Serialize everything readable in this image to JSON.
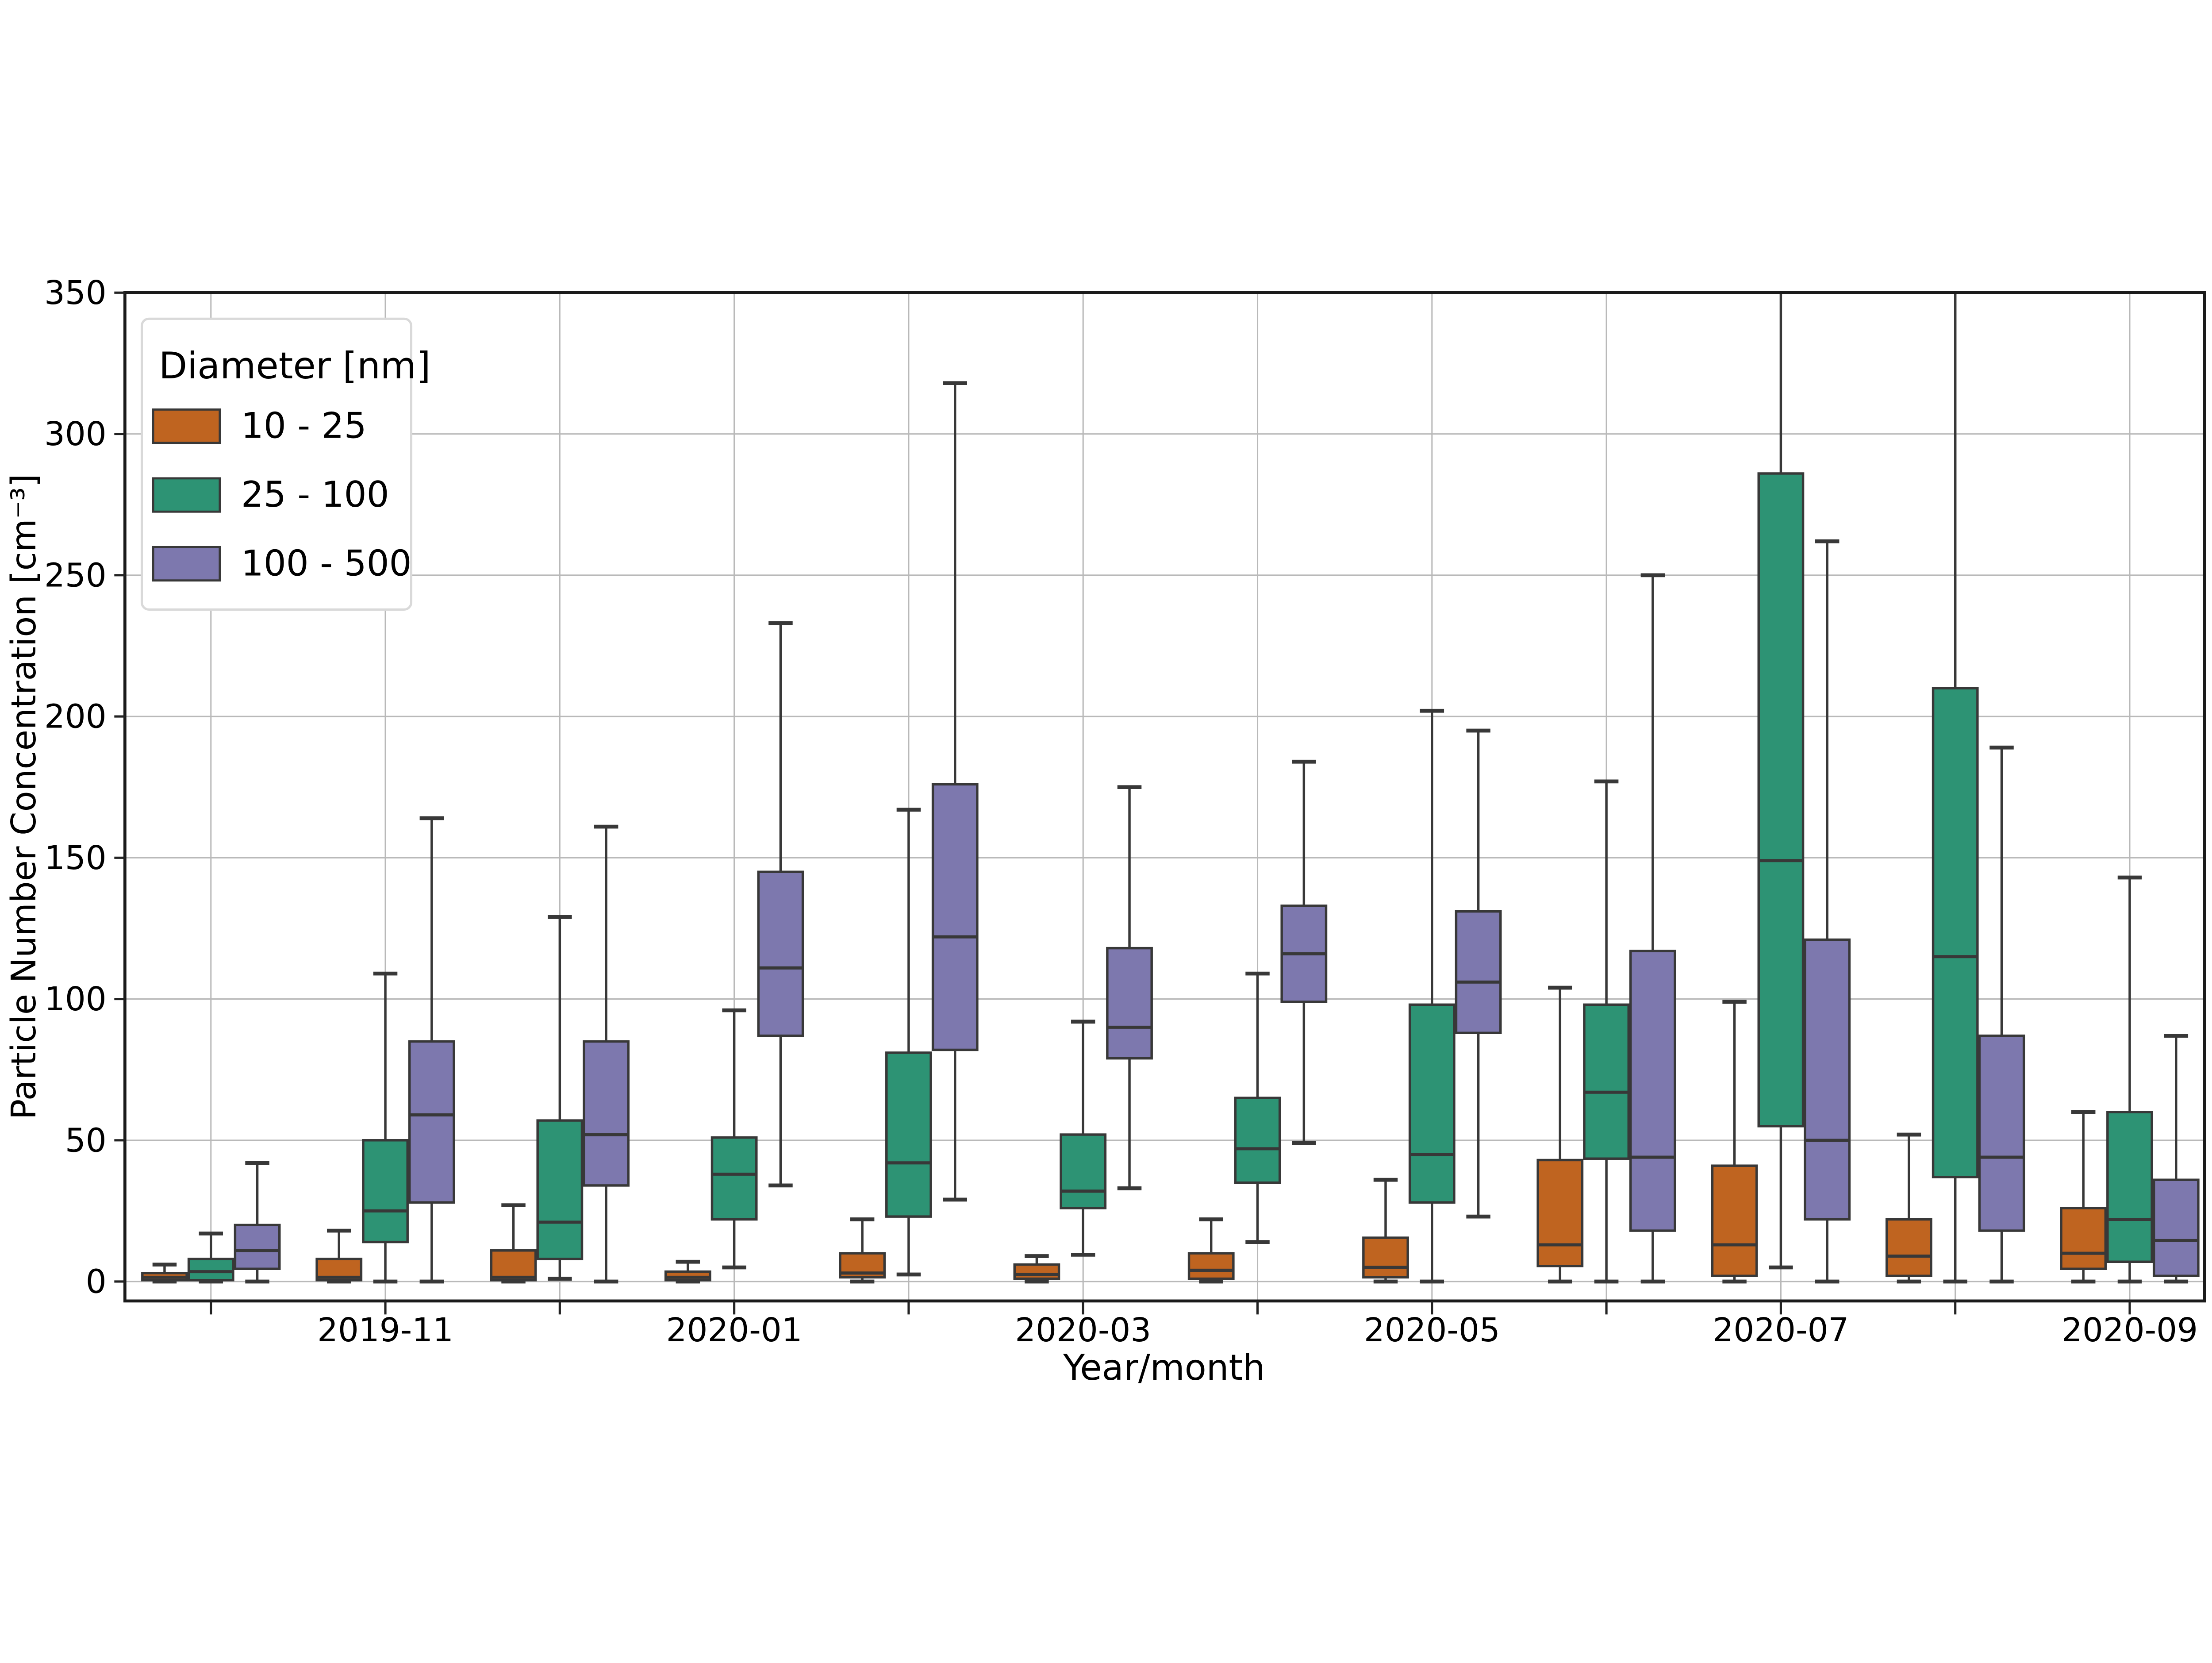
{
  "chart_data": {
    "type": "boxplot",
    "title": "",
    "xlabel": "Year/month",
    "ylabel": "Particle Number Concentration [cm⁻³]",
    "ylim": [
      -7,
      350
    ],
    "yticks": [
      0,
      50,
      100,
      150,
      200,
      250,
      300,
      350
    ],
    "grid": true,
    "fliers_shown": false,
    "categories": [
      "2019-10",
      "2019-11",
      "2019-12",
      "2020-01",
      "2020-02",
      "2020-03",
      "2020-04",
      "2020-05",
      "2020-06",
      "2020-07",
      "2020-08",
      "2020-09"
    ],
    "xtick_labels_shown": [
      "2019-11",
      "2020-01",
      "2020-03",
      "2020-05",
      "2020-07",
      "2020-09"
    ],
    "legend": {
      "title": "Diameter [nm]",
      "position": "upper-left",
      "entries": [
        {
          "label": "10 - 25",
          "color": "#bf6420"
        },
        {
          "label": "25 - 100",
          "color": "#2d9374"
        },
        {
          "label": "100 - 500",
          "color": "#7d78ae"
        }
      ]
    },
    "style": {
      "edge_color": "#383838",
      "grid_color": "#b9b9b9",
      "spine_color": "#1a1a1a",
      "legend_border_color": "#d9d9d9"
    },
    "series": [
      {
        "name": "10 - 25",
        "color": "#bf6420",
        "boxes": [
          {
            "lo": 0,
            "q1": 0.5,
            "med": 1.5,
            "q3": 3,
            "hi": 6
          },
          {
            "lo": 0,
            "q1": 0.5,
            "med": 1.5,
            "q3": 8,
            "hi": 18
          },
          {
            "lo": 0,
            "q1": 0.5,
            "med": 1.5,
            "q3": 11,
            "hi": 27
          },
          {
            "lo": 0,
            "q1": 0.5,
            "med": 1.5,
            "q3": 3.5,
            "hi": 7
          },
          {
            "lo": 0,
            "q1": 1.5,
            "med": 3,
            "q3": 10,
            "hi": 22
          },
          {
            "lo": 0,
            "q1": 1,
            "med": 2.5,
            "q3": 6,
            "hi": 9
          },
          {
            "lo": 0,
            "q1": 1,
            "med": 4,
            "q3": 10,
            "hi": 22
          },
          {
            "lo": 0,
            "q1": 1.5,
            "med": 5,
            "q3": 15.5,
            "hi": 36
          },
          {
            "lo": 0,
            "q1": 5.5,
            "med": 13,
            "q3": 43,
            "hi": 104
          },
          {
            "lo": 0,
            "q1": 2,
            "med": 13,
            "q3": 41,
            "hi": 99
          },
          {
            "lo": 0,
            "q1": 2,
            "med": 9,
            "q3": 22,
            "hi": 52
          },
          {
            "lo": 0,
            "q1": 4.5,
            "med": 10,
            "q3": 26,
            "hi": 60
          }
        ]
      },
      {
        "name": "25 - 100",
        "color": "#2d9374",
        "boxes": [
          {
            "lo": 0,
            "q1": 0.5,
            "med": 3.5,
            "q3": 8,
            "hi": 17
          },
          {
            "lo": 0,
            "q1": 14,
            "med": 25,
            "q3": 50,
            "hi": 109
          },
          {
            "lo": 1,
            "q1": 8,
            "med": 21,
            "q3": 57,
            "hi": 129
          },
          {
            "lo": 5,
            "q1": 22,
            "med": 38,
            "q3": 51,
            "hi": 96
          },
          {
            "lo": 2.5,
            "q1": 23,
            "med": 42,
            "q3": 81,
            "hi": 167
          },
          {
            "lo": 9.5,
            "q1": 26,
            "med": 32,
            "q3": 52,
            "hi": 92
          },
          {
            "lo": 14,
            "q1": 35,
            "med": 47,
            "q3": 65,
            "hi": 109
          },
          {
            "lo": 0,
            "q1": 28,
            "med": 45,
            "q3": 98,
            "hi": 202
          },
          {
            "lo": 0,
            "q1": 43.5,
            "med": 67,
            "q3": 98,
            "hi": 177
          },
          {
            "lo": 5,
            "q1": 55,
            "med": 149,
            "q3": 286,
            "hi": 350,
            "hi_clipped": true
          },
          {
            "lo": 0,
            "q1": 37,
            "med": 115,
            "q3": 210,
            "hi": 350,
            "hi_clipped": true
          },
          {
            "lo": 0,
            "q1": 7,
            "med": 22,
            "q3": 60,
            "hi": 143
          }
        ]
      },
      {
        "name": "100 - 500",
        "color": "#7d78ae",
        "boxes": [
          {
            "lo": 0,
            "q1": 4.5,
            "med": 11,
            "q3": 20,
            "hi": 42
          },
          {
            "lo": 0,
            "q1": 28,
            "med": 59,
            "q3": 85,
            "hi": 164
          },
          {
            "lo": 0,
            "q1": 34,
            "med": 52,
            "q3": 85,
            "hi": 161
          },
          {
            "lo": 34,
            "q1": 87,
            "med": 111,
            "q3": 145,
            "hi": 233
          },
          {
            "lo": 29,
            "q1": 82,
            "med": 122,
            "q3": 176,
            "hi": 318
          },
          {
            "lo": 33,
            "q1": 79,
            "med": 90,
            "q3": 118,
            "hi": 175
          },
          {
            "lo": 49,
            "q1": 99,
            "med": 116,
            "q3": 133,
            "hi": 184
          },
          {
            "lo": 23,
            "q1": 88,
            "med": 106,
            "q3": 131,
            "hi": 195
          },
          {
            "lo": 0,
            "q1": 18,
            "med": 44,
            "q3": 117,
            "hi": 250
          },
          {
            "lo": 0,
            "q1": 22,
            "med": 50,
            "q3": 121,
            "hi": 262
          },
          {
            "lo": 0,
            "q1": 18,
            "med": 44,
            "q3": 87,
            "hi": 189
          },
          {
            "lo": 0,
            "q1": 2,
            "med": 14.5,
            "q3": 36,
            "hi": 87
          }
        ]
      }
    ]
  }
}
